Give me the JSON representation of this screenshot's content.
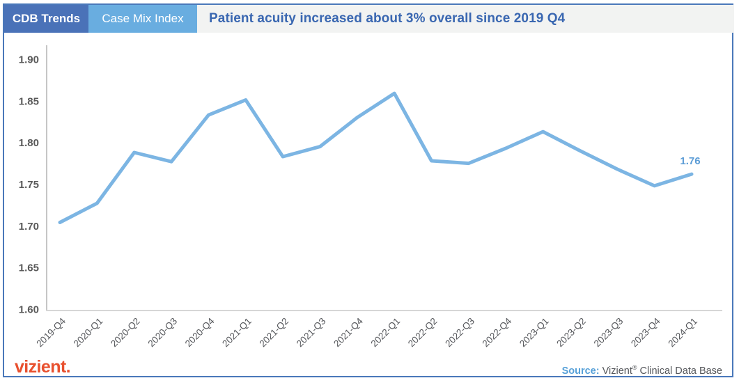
{
  "header": {
    "badge_primary": "CDB Trends",
    "badge_secondary": "Case Mix Index",
    "title": "Patient acuity increased about 3% overall since 2019 Q4"
  },
  "footer": {
    "logo_text": "vizient.",
    "source_label": "Source:",
    "source_org": "Vizient",
    "source_reg": "®",
    "source_rest": " Clinical Data Base"
  },
  "colors": {
    "frame_border": "#4a78ba",
    "badge_primary_bg": "#4a72b8",
    "badge_secondary_bg": "#69ade0",
    "header_bg": "#f2f3f2",
    "title_text": "#3a67b1",
    "line": "#7cb5e3",
    "value_label": "#5b9cd6",
    "y_tick_text": "#595959",
    "x_tick_text": "#54565a",
    "source_label_text": "#56a0d8",
    "logo_text": "#e8502e"
  },
  "chart_data": {
    "type": "line",
    "series_name": "Case Mix Index",
    "categories": [
      "2019-Q4",
      "2020-Q1",
      "2020-Q2",
      "2020-Q3",
      "2020-Q4",
      "2021-Q1",
      "2021-Q2",
      "2021-Q3",
      "2021-Q4",
      "2022-Q1",
      "2022-Q2",
      "2022-Q3",
      "2022-Q4",
      "2023-Q1",
      "2023-Q2",
      "2023-Q3",
      "2023-Q4",
      "2024-Q1"
    ],
    "values": [
      1.704,
      1.727,
      1.788,
      1.777,
      1.833,
      1.851,
      1.783,
      1.795,
      1.83,
      1.859,
      1.778,
      1.775,
      1.793,
      1.813,
      1.79,
      1.768,
      1.748,
      1.762
    ],
    "title": "Patient acuity increased about 3% overall since 2019 Q4",
    "xlabel": "",
    "ylabel": "",
    "ylim": [
      1.6,
      1.9
    ],
    "yticks": [
      1.9,
      1.85,
      1.8,
      1.75,
      1.7,
      1.65,
      1.6
    ],
    "last_point_label": "1.76",
    "grid": "off",
    "legend": "none"
  }
}
